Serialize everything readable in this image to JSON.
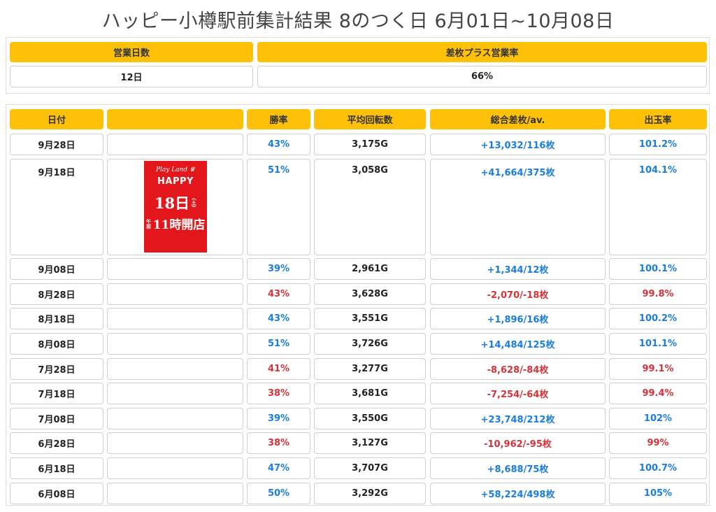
{
  "page": {
    "title": "ハッピー小樽駅前集計結果 8のつく日 6月01日~10月08日"
  },
  "summary": {
    "headers": [
      "営業日数",
      "差枚プラス営業率"
    ],
    "values": [
      "12日",
      "66%"
    ]
  },
  "table": {
    "headers": [
      "日付",
      "",
      "勝率",
      "平均回転数",
      "総合差枚/av.",
      "出玉率"
    ],
    "rows": [
      {
        "date": "9月28日",
        "win": "43%",
        "spins": "3,175G",
        "diff": "+13,032/116枚",
        "rate": "101.2%",
        "win_color": "pos",
        "diff_color": "pos",
        "rate_color": "pos"
      },
      {
        "date": "9月18日",
        "win": "51%",
        "spins": "3,058G",
        "diff": "+41,664/375枚",
        "rate": "104.1%",
        "win_color": "pos",
        "diff_color": "pos",
        "rate_color": "pos"
      },
      {
        "date": "9月08日",
        "win": "39%",
        "spins": "2,961G",
        "diff": "+1,344/12枚",
        "rate": "100.1%",
        "win_color": "pos",
        "diff_color": "pos",
        "rate_color": "pos"
      },
      {
        "date": "8月28日",
        "win": "43%",
        "spins": "3,628G",
        "diff": "-2,070/-18枚",
        "rate": "99.8%",
        "win_color": "neg",
        "diff_color": "neg",
        "rate_color": "neg"
      },
      {
        "date": "8月18日",
        "win": "43%",
        "spins": "3,551G",
        "diff": "+1,896/16枚",
        "rate": "100.2%",
        "win_color": "pos",
        "diff_color": "pos",
        "rate_color": "pos"
      },
      {
        "date": "8月08日",
        "win": "51%",
        "spins": "3,726G",
        "diff": "+14,484/125枚",
        "rate": "101.1%",
        "win_color": "pos",
        "diff_color": "pos",
        "rate_color": "pos"
      },
      {
        "date": "7月28日",
        "win": "41%",
        "spins": "3,277G",
        "diff": "-8,628/-84枚",
        "rate": "99.1%",
        "win_color": "neg",
        "diff_color": "neg",
        "rate_color": "neg"
      },
      {
        "date": "7月18日",
        "win": "38%",
        "spins": "3,681G",
        "diff": "-7,254/-64枚",
        "rate": "99.4%",
        "win_color": "neg",
        "diff_color": "neg",
        "rate_color": "neg"
      },
      {
        "date": "7月08日",
        "win": "39%",
        "spins": "3,550G",
        "diff": "+23,748/212枚",
        "rate": "102%",
        "win_color": "pos",
        "diff_color": "pos",
        "rate_color": "pos"
      },
      {
        "date": "6月28日",
        "win": "38%",
        "spins": "3,127G",
        "diff": "-10,962/-95枚",
        "rate": "99%",
        "win_color": "neg",
        "diff_color": "neg",
        "rate_color": "neg"
      },
      {
        "date": "6月18日",
        "win": "47%",
        "spins": "3,707G",
        "diff": "+8,688/75枚",
        "rate": "100.7%",
        "win_color": "pos",
        "diff_color": "pos",
        "rate_color": "pos"
      },
      {
        "date": "6月08日",
        "win": "50%",
        "spins": "3,292G",
        "diff": "+58,224/498枚",
        "rate": "105%",
        "win_color": "pos",
        "diff_color": "pos",
        "rate_color": "pos"
      }
    ]
  },
  "banner": {
    "crown_text": "Play Land",
    "brand": "HAPPY",
    "day": "18日",
    "day_note": "(土)"
  },
  "colors": {
    "header_bg": "#ffc107",
    "positive": "#1a7de0",
    "negative": "#d83238",
    "banner_bg": "#e3161b"
  }
}
